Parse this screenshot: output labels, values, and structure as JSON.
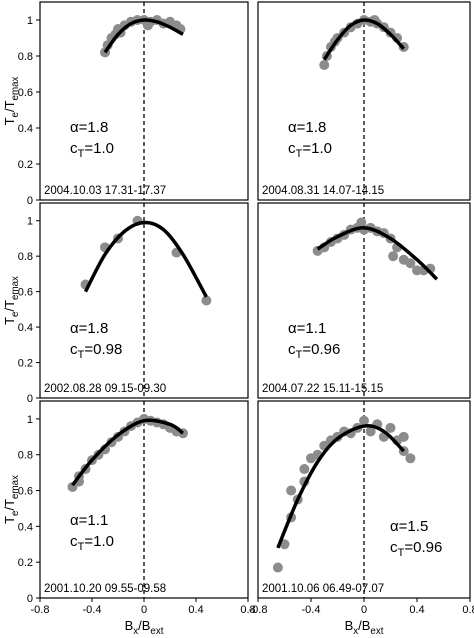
{
  "chart_data": [
    {
      "type": "scatter",
      "alpha_label": "α=1.8",
      "ct_label": [
        "c",
        "T",
        "=1.0"
      ],
      "date_label": "2004.10.03 17.31-17.37",
      "ylabel": [
        "T",
        "e",
        "/T",
        "emax"
      ],
      "xlim": [
        -0.8,
        0.8
      ],
      "ylim": [
        0,
        1.1
      ],
      "yticks": [
        0,
        0.2,
        0.4,
        0.6,
        0.8,
        1
      ],
      "points": {
        "color": "#8c8c8c",
        "x": [
          -0.3,
          -0.28,
          -0.25,
          -0.22,
          -0.2,
          -0.18,
          -0.15,
          -0.1,
          -0.05,
          0,
          0.03,
          0.05,
          0.1,
          0.15,
          0.2,
          0.25,
          0.28
        ],
        "y": [
          0.82,
          0.86,
          0.9,
          0.92,
          0.95,
          0.93,
          0.97,
          0.99,
          1.0,
          1.0,
          0.97,
          0.99,
          1.0,
          0.98,
          0.99,
          0.97,
          0.95
        ]
      },
      "fit": {
        "color": "#000000",
        "x": [
          -0.3,
          -0.2,
          -0.1,
          0,
          0.1,
          0.2,
          0.3
        ],
        "y": [
          0.82,
          0.92,
          0.98,
          1.0,
          0.99,
          0.96,
          0.92
        ]
      }
    },
    {
      "type": "scatter",
      "alpha_label": "α=1.8",
      "ct_label": [
        "c",
        "T",
        "=1.0"
      ],
      "date_label": "2004.08.31 14.07-14.15",
      "xlim": [
        -0.8,
        0.8
      ],
      "ylim": [
        0,
        1.1
      ],
      "points": {
        "color": "#8c8c8c",
        "x": [
          -0.3,
          -0.28,
          -0.25,
          -0.22,
          -0.2,
          -0.15,
          -0.1,
          -0.05,
          0,
          0.05,
          0.08,
          0.1,
          0.15,
          0.2,
          0.25,
          0.3
        ],
        "y": [
          0.75,
          0.8,
          0.85,
          0.88,
          0.9,
          0.93,
          0.96,
          0.98,
          1.0,
          0.99,
          1.0,
          0.98,
          0.96,
          0.93,
          0.9,
          0.85
        ]
      },
      "fit": {
        "color": "#000000",
        "x": [
          -0.3,
          -0.2,
          -0.1,
          0,
          0.1,
          0.2,
          0.3
        ],
        "y": [
          0.78,
          0.89,
          0.97,
          1.0,
          0.98,
          0.92,
          0.84
        ]
      }
    },
    {
      "type": "scatter",
      "alpha_label": "α=1.8",
      "ct_label": [
        "c",
        "T",
        "=0.98"
      ],
      "date_label": "2002.08.28 09.15-09.30",
      "ylabel": [
        "T",
        "e",
        "/T",
        "emax"
      ],
      "xlim": [
        -0.8,
        0.8
      ],
      "ylim": [
        0,
        1.1
      ],
      "yticks": [
        0,
        0.2,
        0.4,
        0.6,
        0.8,
        1
      ],
      "points": {
        "color": "#8c8c8c",
        "x": [
          -0.45,
          -0.3,
          -0.2,
          -0.05,
          0.25,
          0.48
        ],
        "y": [
          0.64,
          0.85,
          0.9,
          1.0,
          0.82,
          0.55
        ]
      },
      "fit": {
        "color": "#000000",
        "x": [
          -0.45,
          -0.3,
          -0.15,
          0,
          0.15,
          0.3,
          0.48
        ],
        "y": [
          0.6,
          0.81,
          0.94,
          0.99,
          0.95,
          0.81,
          0.57
        ]
      }
    },
    {
      "type": "scatter",
      "alpha_label": "α=1.1",
      "ct_label": [
        "c",
        "T",
        "=0.96"
      ],
      "date_label": "2004.07.22 15.11-15.15",
      "xlim": [
        -0.8,
        0.8
      ],
      "ylim": [
        0,
        1.1
      ],
      "points": {
        "color": "#8c8c8c",
        "x": [
          -0.35,
          -0.3,
          -0.25,
          -0.2,
          -0.15,
          -0.1,
          -0.05,
          -0.02,
          0,
          0.05,
          0.1,
          0.15,
          0.2,
          0.22,
          0.25,
          0.3,
          0.35,
          0.4,
          0.45,
          0.5
        ],
        "y": [
          0.83,
          0.85,
          0.88,
          0.9,
          0.92,
          0.95,
          0.96,
          0.99,
          0.95,
          0.96,
          0.94,
          0.93,
          0.9,
          0.8,
          0.85,
          0.78,
          0.76,
          0.72,
          0.72,
          0.73
        ]
      },
      "fit": {
        "color": "#000000",
        "x": [
          -0.35,
          -0.2,
          0,
          0.2,
          0.4,
          0.55
        ],
        "y": [
          0.84,
          0.91,
          0.96,
          0.9,
          0.78,
          0.67
        ]
      }
    },
    {
      "type": "scatter",
      "alpha_label": "α=1.1",
      "ct_label": [
        "c",
        "T",
        "=1.0"
      ],
      "date_label": "2001.10.20 09.55-09.58",
      "ylabel": [
        "T",
        "e",
        "/T",
        "emax"
      ],
      "xlabel": [
        "B",
        "x",
        "/B",
        "ext"
      ],
      "xlim": [
        -0.8,
        0.8
      ],
      "ylim": [
        0,
        1.1
      ],
      "yticks": [
        0,
        0.2,
        0.4,
        0.6,
        0.8,
        1
      ],
      "xticks": [
        -0.8,
        -0.4,
        0,
        0.4,
        0.8
      ],
      "points": {
        "color": "#8c8c8c",
        "x": [
          -0.55,
          -0.5,
          -0.5,
          -0.45,
          -0.4,
          -0.35,
          -0.3,
          -0.25,
          -0.2,
          -0.15,
          -0.1,
          -0.05,
          0,
          0.05,
          0.1,
          0.15,
          0.2,
          0.25,
          0.3
        ],
        "y": [
          0.62,
          0.68,
          0.65,
          0.72,
          0.77,
          0.8,
          0.83,
          0.87,
          0.9,
          0.93,
          0.96,
          0.98,
          1.0,
          0.99,
          0.98,
          0.97,
          0.95,
          0.93,
          0.92
        ]
      },
      "fit": {
        "color": "#000000",
        "x": [
          -0.55,
          -0.4,
          -0.2,
          0,
          0.2,
          0.3
        ],
        "y": [
          0.63,
          0.77,
          0.91,
          0.99,
          0.97,
          0.92
        ]
      }
    },
    {
      "type": "scatter",
      "alpha_label": "α=1.5",
      "ct_label": [
        "c",
        "T",
        "=0.96"
      ],
      "date_label": "2001.10.06 06.49-07.07",
      "xlabel": [
        "B",
        "x",
        "/B",
        "ext"
      ],
      "xlim": [
        -0.8,
        0.8
      ],
      "ylim": [
        0,
        1.1
      ],
      "xticks": [
        -0.8,
        -0.4,
        0,
        0.4,
        0.8
      ],
      "points": {
        "color": "#8c8c8c",
        "x": [
          -0.65,
          -0.6,
          -0.55,
          -0.5,
          -0.55,
          -0.45,
          -0.45,
          -0.4,
          -0.35,
          -0.3,
          -0.25,
          -0.2,
          -0.15,
          -0.1,
          -0.05,
          0,
          0.05,
          0.1,
          0.15,
          0.2,
          0.25,
          0.3,
          0.35,
          0.3
        ],
        "y": [
          0.17,
          0.3,
          0.45,
          0.55,
          0.6,
          0.65,
          0.72,
          0.78,
          0.8,
          0.85,
          0.88,
          0.9,
          0.93,
          0.92,
          0.95,
          0.99,
          0.93,
          0.97,
          0.9,
          0.95,
          0.88,
          0.82,
          0.78,
          0.9
        ]
      },
      "fit": {
        "color": "#000000",
        "x": [
          -0.65,
          -0.5,
          -0.35,
          -0.2,
          0,
          0.15,
          0.3
        ],
        "y": [
          0.28,
          0.55,
          0.76,
          0.89,
          0.96,
          0.93,
          0.82
        ]
      }
    }
  ]
}
